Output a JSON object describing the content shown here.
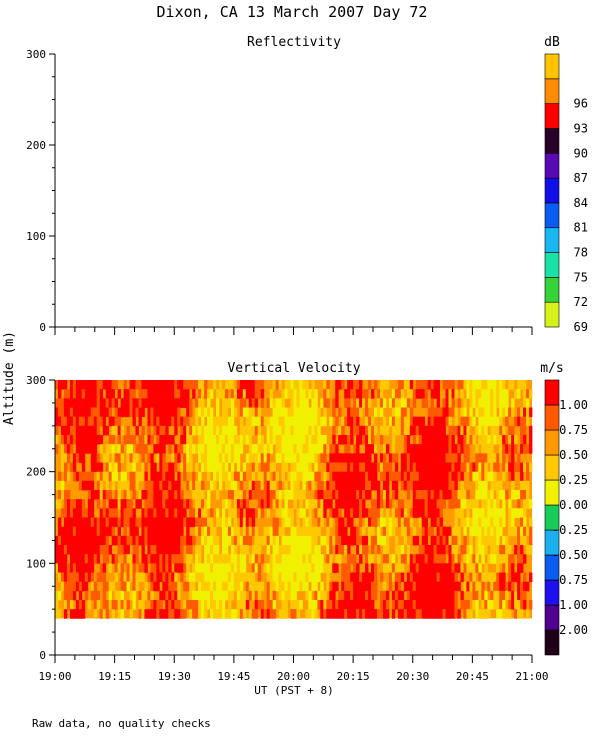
{
  "title": "Dixon, CA 13 March 2007  Day  72",
  "footer": "Raw data, no quality checks",
  "colors": {
    "reflectivity": [
      "#d7f21a",
      "#35d23a",
      "#19e2a6",
      "#19b6f2",
      "#0a5cf2",
      "#1010e6",
      "#5a0ab4",
      "#280028",
      "#ff0000",
      "#ff8c00",
      "#ffc400"
    ],
    "velocity": [
      "#200018",
      "#500090",
      "#1f10f0",
      "#0b5cf0",
      "#1ab0ef",
      "#19cc5a",
      "#f0f000",
      "#ffc800",
      "#ff9800",
      "#ff5a00",
      "#ff0000"
    ]
  },
  "chart_data": [
    {
      "type": "heatmap",
      "title": "Reflectivity",
      "ylabel": "Altitude (m)",
      "ylim": [
        0,
        300
      ],
      "yticks": [
        "0",
        "100",
        "200",
        "300"
      ],
      "colorbar": {
        "unit": "dB",
        "labels": [
          "69",
          "72",
          "75",
          "78",
          "81",
          "84",
          "87",
          "90",
          "93",
          "96"
        ]
      },
      "values": []
    },
    {
      "type": "heatmap",
      "title": "Vertical Velocity",
      "xlabel": "UT  (PST + 8)",
      "xlim": [
        "19:00",
        "21:00"
      ],
      "xticks": [
        "19:00",
        "19:15",
        "19:30",
        "19:45",
        "20:00",
        "20:15",
        "20:30",
        "20:45",
        "21:00"
      ],
      "ylim": [
        0,
        300
      ],
      "yticks": [
        "0",
        "100",
        "200",
        "300"
      ],
      "data_altitude_range": [
        40,
        300
      ],
      "colorbar": {
        "unit": "m/s",
        "labels": [
          "-2.00",
          "-1.00",
          "-0.75",
          "-0.50",
          "-0.25",
          "0.00",
          "0.25",
          "0.50",
          "0.75",
          "1.00"
        ]
      }
    }
  ]
}
